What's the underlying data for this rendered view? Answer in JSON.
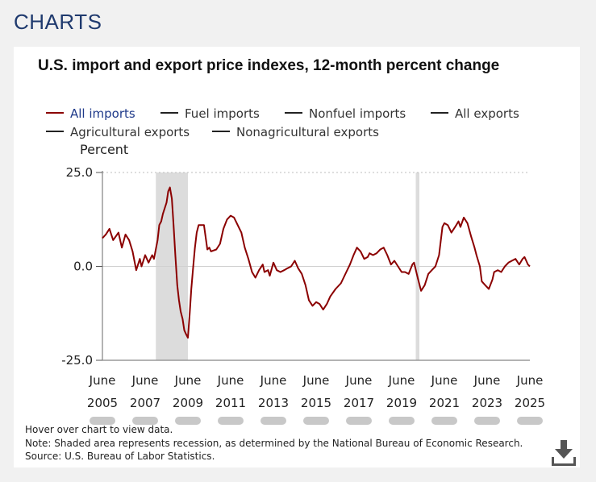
{
  "page": {
    "header": "CHARTS"
  },
  "chart_data": {
    "type": "line",
    "title": "U.S. import and export price indexes, 12-month percent change",
    "ylabel": "Percent",
    "ylim": [
      -25,
      25
    ],
    "yticks": [
      "25.0",
      "0.0",
      "-25.0"
    ],
    "yticks_values": [
      25,
      0,
      -25
    ],
    "xticks": [
      {
        "month": "June",
        "year": "2005"
      },
      {
        "month": "June",
        "year": "2007"
      },
      {
        "month": "June",
        "year": "2009"
      },
      {
        "month": "June",
        "year": "2011"
      },
      {
        "month": "June",
        "year": "2013"
      },
      {
        "month": "June",
        "year": "2015"
      },
      {
        "month": "June",
        "year": "2017"
      },
      {
        "month": "June",
        "year": "2019"
      },
      {
        "month": "June",
        "year": "2021"
      },
      {
        "month": "June",
        "year": "2023"
      },
      {
        "month": "June",
        "year": "2025"
      }
    ],
    "x_range": [
      2005.42,
      2025.42
    ],
    "recessions": [
      [
        2007.92,
        2009.42
      ],
      [
        2020.08,
        2020.25
      ]
    ],
    "legend": [
      {
        "label": "All imports",
        "active": true,
        "color": "#8b0000"
      },
      {
        "label": "Fuel imports",
        "active": false
      },
      {
        "label": "Nonfuel imports",
        "active": false
      },
      {
        "label": "All exports",
        "active": false
      },
      {
        "label": "Agricultural exports",
        "active": false
      },
      {
        "label": "Nonagricultural exports",
        "active": false
      }
    ],
    "series": [
      {
        "name": "All imports",
        "color": "#8b0000",
        "points": [
          [
            2005.42,
            7.5
          ],
          [
            2005.58,
            8.5
          ],
          [
            2005.75,
            10
          ],
          [
            2005.92,
            7
          ],
          [
            2006.17,
            9
          ],
          [
            2006.33,
            5
          ],
          [
            2006.5,
            8.5
          ],
          [
            2006.67,
            7
          ],
          [
            2006.83,
            4
          ],
          [
            2007.0,
            -1
          ],
          [
            2007.17,
            2
          ],
          [
            2007.25,
            0
          ],
          [
            2007.42,
            3
          ],
          [
            2007.58,
            1
          ],
          [
            2007.75,
            3
          ],
          [
            2007.83,
            2
          ],
          [
            2008.0,
            7
          ],
          [
            2008.08,
            11
          ],
          [
            2008.17,
            12
          ],
          [
            2008.25,
            14
          ],
          [
            2008.42,
            17
          ],
          [
            2008.5,
            20
          ],
          [
            2008.58,
            21
          ],
          [
            2008.67,
            18
          ],
          [
            2008.75,
            11
          ],
          [
            2008.83,
            3
          ],
          [
            2008.92,
            -5
          ],
          [
            2009.0,
            -9
          ],
          [
            2009.08,
            -12
          ],
          [
            2009.17,
            -14
          ],
          [
            2009.25,
            -17
          ],
          [
            2009.33,
            -18
          ],
          [
            2009.42,
            -19
          ],
          [
            2009.5,
            -13
          ],
          [
            2009.58,
            -6
          ],
          [
            2009.67,
            0
          ],
          [
            2009.75,
            5
          ],
          [
            2009.83,
            9
          ],
          [
            2009.92,
            11
          ],
          [
            2010.17,
            11
          ],
          [
            2010.33,
            4.5
          ],
          [
            2010.42,
            5
          ],
          [
            2010.5,
            4
          ],
          [
            2010.75,
            4.5
          ],
          [
            2010.92,
            6
          ],
          [
            2011.08,
            10
          ],
          [
            2011.25,
            12.5
          ],
          [
            2011.42,
            13.5
          ],
          [
            2011.58,
            13
          ],
          [
            2011.75,
            11
          ],
          [
            2011.92,
            9
          ],
          [
            2012.08,
            5
          ],
          [
            2012.25,
            2
          ],
          [
            2012.42,
            -1.5
          ],
          [
            2012.58,
            -3
          ],
          [
            2012.75,
            -1
          ],
          [
            2012.92,
            0.5
          ],
          [
            2013.0,
            -1.5
          ],
          [
            2013.17,
            -1
          ],
          [
            2013.25,
            -2.5
          ],
          [
            2013.42,
            1
          ],
          [
            2013.58,
            -1
          ],
          [
            2013.75,
            -1.5
          ],
          [
            2013.92,
            -1
          ],
          [
            2014.08,
            -0.5
          ],
          [
            2014.25,
            0
          ],
          [
            2014.42,
            1.5
          ],
          [
            2014.58,
            -0.5
          ],
          [
            2014.75,
            -2
          ],
          [
            2014.92,
            -5
          ],
          [
            2015.08,
            -9
          ],
          [
            2015.25,
            -10.5
          ],
          [
            2015.42,
            -9.5
          ],
          [
            2015.58,
            -10
          ],
          [
            2015.75,
            -11.5
          ],
          [
            2015.92,
            -10
          ],
          [
            2016.08,
            -8
          ],
          [
            2016.33,
            -6
          ],
          [
            2016.58,
            -4.5
          ],
          [
            2016.83,
            -1.5
          ],
          [
            2017.0,
            0.5
          ],
          [
            2017.17,
            3
          ],
          [
            2017.33,
            5
          ],
          [
            2017.5,
            4
          ],
          [
            2017.67,
            2
          ],
          [
            2017.83,
            2.5
          ],
          [
            2017.92,
            3.5
          ],
          [
            2018.08,
            3
          ],
          [
            2018.25,
            3.5
          ],
          [
            2018.42,
            4.5
          ],
          [
            2018.58,
            5
          ],
          [
            2018.75,
            3
          ],
          [
            2018.92,
            0.5
          ],
          [
            2019.08,
            1.5
          ],
          [
            2019.25,
            0
          ],
          [
            2019.42,
            -1.5
          ],
          [
            2019.58,
            -1.5
          ],
          [
            2019.75,
            -2
          ],
          [
            2019.92,
            0.5
          ],
          [
            2020.0,
            1
          ],
          [
            2020.17,
            -3
          ],
          [
            2020.33,
            -6.5
          ],
          [
            2020.5,
            -5
          ],
          [
            2020.67,
            -2
          ],
          [
            2020.83,
            -1
          ],
          [
            2021.0,
            0
          ],
          [
            2021.17,
            3
          ],
          [
            2021.33,
            10.5
          ],
          [
            2021.42,
            11.5
          ],
          [
            2021.58,
            11
          ],
          [
            2021.75,
            9
          ],
          [
            2021.92,
            10.5
          ],
          [
            2022.08,
            12
          ],
          [
            2022.17,
            10.5
          ],
          [
            2022.33,
            13
          ],
          [
            2022.5,
            11.5
          ],
          [
            2022.67,
            8
          ],
          [
            2022.83,
            5
          ],
          [
            2022.92,
            3
          ],
          [
            2023.08,
            0
          ],
          [
            2023.17,
            -4
          ],
          [
            2023.33,
            -5
          ],
          [
            2023.5,
            -6
          ],
          [
            2023.67,
            -3.5
          ],
          [
            2023.75,
            -1.5
          ],
          [
            2023.92,
            -1
          ],
          [
            2024.08,
            -1.5
          ],
          [
            2024.25,
            0
          ],
          [
            2024.42,
            1
          ],
          [
            2024.58,
            1.5
          ],
          [
            2024.75,
            2
          ],
          [
            2024.92,
            0.5
          ],
          [
            2025.08,
            2
          ],
          [
            2025.17,
            2.5
          ],
          [
            2025.25,
            1.5
          ],
          [
            2025.33,
            0.5
          ],
          [
            2025.42,
            0
          ]
        ]
      }
    ]
  },
  "notes": {
    "hover": "Hover over chart to view data.",
    "recession_note": "Note: Shaded area represents recession, as determined by the National Bureau of Economic Research.",
    "source": "Source: U.S. Bureau of Labor Statistics."
  },
  "icons": {
    "download": "download-icon"
  }
}
